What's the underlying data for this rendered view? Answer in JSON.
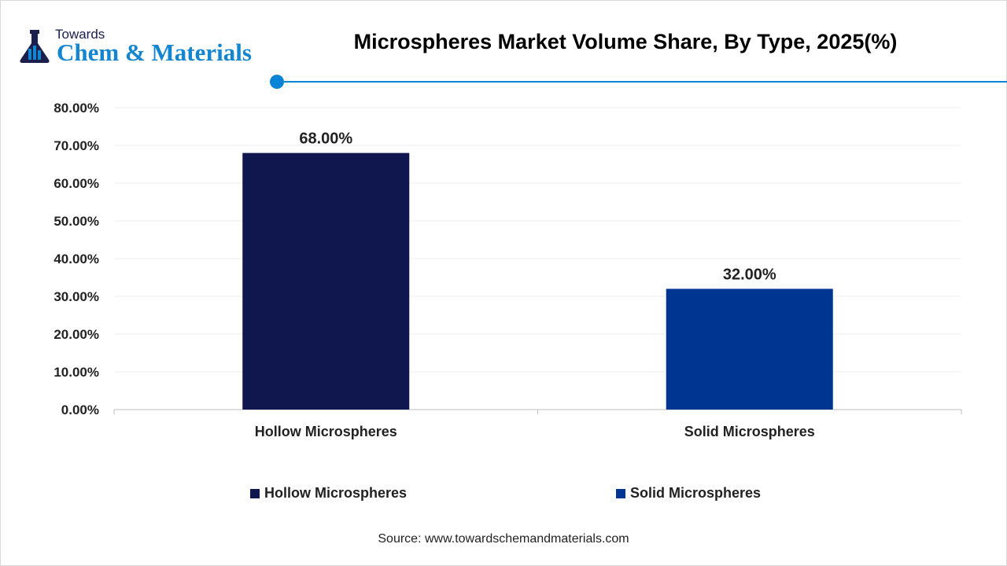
{
  "logo": {
    "top": "Towards",
    "main": "Chem & Materials"
  },
  "header": {
    "title": "Microspheres Market Volume Share, By Type, 2025(%)"
  },
  "colors": {
    "accent": "#0a84d6",
    "hollow": "#10174f",
    "solid": "#003591"
  },
  "chart_data": {
    "type": "bar",
    "title": "Microspheres Market Volume Share, By Type, 2025(%)",
    "categories": [
      "Hollow Microspheres",
      "Solid Microspheres"
    ],
    "values": [
      68,
      32
    ],
    "data_labels": [
      "68.00%",
      "32.00%"
    ],
    "ylim": [
      0,
      80
    ],
    "yticks": [
      "0.00%",
      "10.00%",
      "20.00%",
      "30.00%",
      "40.00%",
      "50.00%",
      "60.00%",
      "70.00%",
      "80.00%"
    ],
    "grid": true,
    "legend": {
      "placement": "bottom",
      "entries": [
        "Hollow Microspheres",
        "Solid Microspheres"
      ]
    }
  },
  "source": "Source: www.towardschemandmaterials.com"
}
